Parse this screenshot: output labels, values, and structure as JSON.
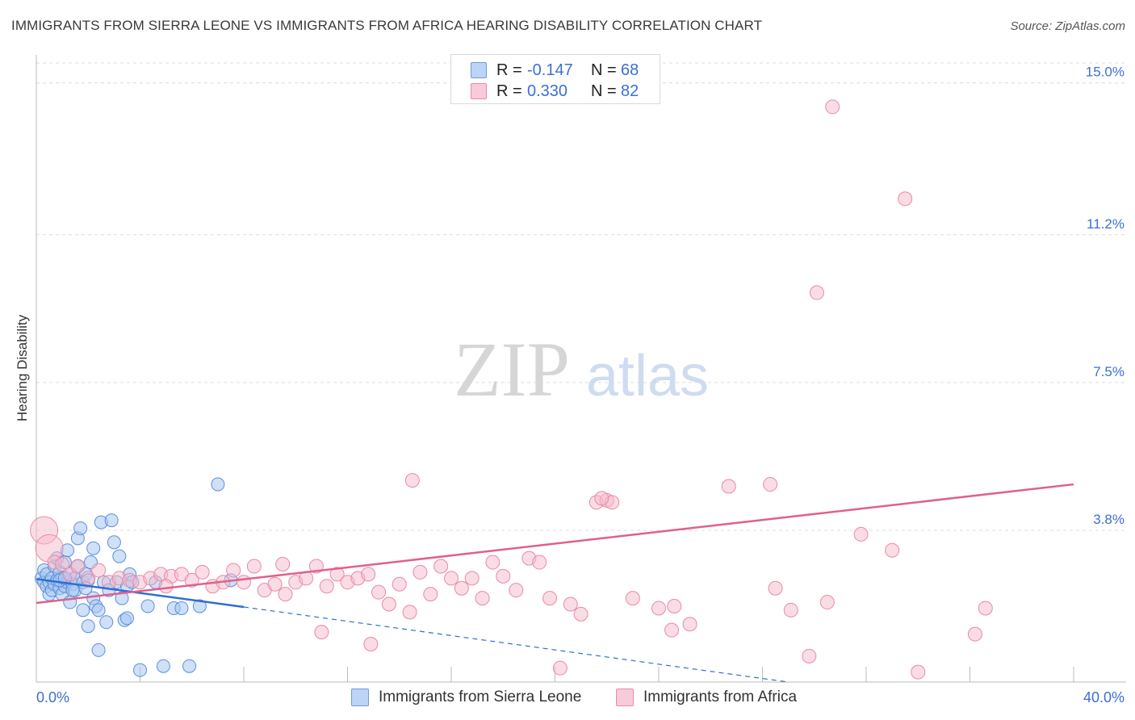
{
  "header": {
    "title": "IMMIGRANTS FROM SIERRA LEONE VS IMMIGRANTS FROM AFRICA HEARING DISABILITY CORRELATION CHART",
    "source": "Source: ZipAtlas.com"
  },
  "watermark": {
    "zip": "ZIP",
    "atlas": "atlas"
  },
  "legend": {
    "series1": {
      "r_label": "R =",
      "r_value": "-0.147",
      "n_label": "N =",
      "n_value": "68"
    },
    "series2": {
      "r_label": "R =",
      "r_value": "0.330",
      "n_label": "N =",
      "n_value": "82"
    }
  },
  "chart_data": {
    "type": "scatter",
    "title": "IMMIGRANTS FROM SIERRA LEONE VS IMMIGRANTS FROM AFRICA HEARING DISABILITY CORRELATION CHART",
    "xlabel": "",
    "ylabel": "Hearing Disability",
    "xlim": [
      0,
      40
    ],
    "ylim": [
      0,
      15.5
    ],
    "x_tick_labels": [
      "0.0%",
      "40.0%"
    ],
    "y_ticks": [
      3.8,
      7.5,
      11.2,
      15.0
    ],
    "y_tick_labels": [
      "3.8%",
      "7.5%",
      "11.2%",
      "15.0%"
    ],
    "grid": true,
    "colors": {
      "series1_fill": "#a8c6f0",
      "series1_stroke": "#5b8fdc",
      "series1_line": "#2f6fd0",
      "series2_fill": "#f6b9cc",
      "series2_stroke": "#e88aa8",
      "series2_line": "#e0608c",
      "tick_label": "#3b6fd6"
    },
    "series": [
      {
        "name": "Immigrants from Sierra Leone",
        "trend": {
          "x": [
            0.0,
            8.0
          ],
          "y": [
            2.58,
            1.88
          ],
          "dashed_to_x": 29.0,
          "dashed_to_y": 0.0
        },
        "points": [
          [
            0.2,
            2.6
          ],
          [
            0.3,
            2.5
          ],
          [
            0.3,
            2.8
          ],
          [
            0.4,
            2.4
          ],
          [
            0.4,
            2.7
          ],
          [
            0.5,
            2.2
          ],
          [
            0.5,
            2.5
          ],
          [
            0.6,
            2.6
          ],
          [
            0.6,
            2.3
          ],
          [
            0.7,
            2.9
          ],
          [
            0.7,
            2.45
          ],
          [
            0.8,
            2.55
          ],
          [
            0.8,
            3.1
          ],
          [
            0.9,
            2.35
          ],
          [
            0.9,
            2.75
          ],
          [
            1.0,
            2.6
          ],
          [
            1.0,
            2.2
          ],
          [
            1.1,
            2.4
          ],
          [
            1.1,
            3.0
          ],
          [
            1.2,
            3.3
          ],
          [
            1.2,
            2.5
          ],
          [
            1.3,
            2.7
          ],
          [
            1.3,
            2.0
          ],
          [
            1.4,
            2.45
          ],
          [
            1.5,
            2.6
          ],
          [
            1.5,
            2.3
          ],
          [
            1.6,
            3.6
          ],
          [
            1.6,
            2.9
          ],
          [
            1.7,
            3.85
          ],
          [
            1.8,
            2.5
          ],
          [
            1.8,
            1.8
          ],
          [
            1.9,
            2.7
          ],
          [
            2.0,
            2.55
          ],
          [
            2.0,
            1.4
          ],
          [
            2.1,
            3.0
          ],
          [
            2.2,
            2.1
          ],
          [
            2.3,
            1.9
          ],
          [
            2.4,
            0.8
          ],
          [
            2.5,
            4.0
          ],
          [
            2.6,
            2.5
          ],
          [
            2.7,
            1.5
          ],
          [
            2.8,
            2.3
          ],
          [
            2.9,
            4.05
          ],
          [
            3.0,
            3.5
          ],
          [
            3.1,
            2.5
          ],
          [
            3.2,
            3.15
          ],
          [
            3.3,
            2.1
          ],
          [
            3.4,
            1.55
          ],
          [
            3.5,
            2.4
          ],
          [
            3.6,
            2.7
          ],
          [
            3.7,
            2.5
          ],
          [
            4.0,
            0.3
          ],
          [
            4.3,
            1.9
          ],
          [
            4.6,
            2.5
          ],
          [
            4.9,
            0.4
          ],
          [
            5.3,
            1.85
          ],
          [
            5.6,
            1.85
          ],
          [
            5.9,
            0.4
          ],
          [
            6.3,
            1.9
          ],
          [
            7.0,
            4.95
          ],
          [
            7.5,
            2.55
          ],
          [
            2.2,
            3.35
          ],
          [
            1.4,
            2.3
          ],
          [
            0.9,
            2.55
          ],
          [
            2.4,
            1.8
          ],
          [
            1.9,
            2.35
          ],
          [
            3.5,
            1.6
          ],
          [
            1.1,
            2.6
          ]
        ]
      },
      {
        "name": "Immigrants from Africa",
        "trend": {
          "x": [
            0.0,
            40.0
          ],
          "y": [
            1.98,
            4.95
          ]
        },
        "points": [
          [
            0.3,
            3.8
          ],
          [
            0.5,
            3.35
          ],
          [
            0.7,
            3.0
          ],
          [
            1.0,
            2.95
          ],
          [
            1.3,
            2.7
          ],
          [
            1.6,
            2.9
          ],
          [
            2.0,
            2.6
          ],
          [
            2.4,
            2.8
          ],
          [
            2.8,
            2.5
          ],
          [
            3.2,
            2.6
          ],
          [
            3.6,
            2.55
          ],
          [
            4.0,
            2.5
          ],
          [
            4.4,
            2.6
          ],
          [
            4.8,
            2.7
          ],
          [
            5.2,
            2.65
          ],
          [
            5.6,
            2.7
          ],
          [
            6.0,
            2.55
          ],
          [
            6.4,
            2.75
          ],
          [
            6.8,
            2.4
          ],
          [
            7.2,
            2.5
          ],
          [
            7.6,
            2.8
          ],
          [
            8.0,
            2.5
          ],
          [
            8.4,
            2.9
          ],
          [
            8.8,
            2.3
          ],
          [
            9.2,
            2.45
          ],
          [
            9.6,
            2.2
          ],
          [
            10.0,
            2.5
          ],
          [
            10.4,
            2.6
          ],
          [
            10.8,
            2.9
          ],
          [
            11.2,
            2.4
          ],
          [
            11.6,
            2.7
          ],
          [
            12.0,
            2.5
          ],
          [
            12.4,
            2.6
          ],
          [
            12.8,
            2.7
          ],
          [
            13.2,
            2.25
          ],
          [
            13.6,
            1.95
          ],
          [
            14.0,
            2.45
          ],
          [
            14.4,
            1.75
          ],
          [
            14.8,
            2.75
          ],
          [
            15.2,
            2.2
          ],
          [
            15.6,
            2.9
          ],
          [
            16.0,
            2.6
          ],
          [
            16.4,
            2.35
          ],
          [
            16.8,
            2.6
          ],
          [
            17.2,
            2.1
          ],
          [
            17.6,
            3.0
          ],
          [
            18.0,
            2.65
          ],
          [
            18.5,
            2.3
          ],
          [
            19.0,
            3.1
          ],
          [
            19.4,
            3.0
          ],
          [
            19.8,
            2.1
          ],
          [
            20.2,
            0.35
          ],
          [
            20.6,
            1.95
          ],
          [
            21.0,
            1.7
          ],
          [
            21.6,
            4.5
          ],
          [
            22.0,
            4.55
          ],
          [
            22.2,
            4.5
          ],
          [
            23.0,
            2.1
          ],
          [
            24.0,
            1.85
          ],
          [
            24.5,
            1.3
          ],
          [
            25.2,
            1.45
          ],
          [
            14.5,
            5.05
          ],
          [
            21.8,
            4.6
          ],
          [
            26.7,
            4.9
          ],
          [
            28.3,
            4.95
          ],
          [
            28.5,
            2.35
          ],
          [
            29.1,
            1.8
          ],
          [
            29.8,
            0.65
          ],
          [
            30.5,
            2.0
          ],
          [
            31.8,
            3.7
          ],
          [
            33.0,
            3.3
          ],
          [
            24.6,
            1.9
          ],
          [
            12.9,
            0.95
          ],
          [
            36.6,
            1.85
          ],
          [
            11.0,
            1.25
          ],
          [
            33.5,
            12.1
          ],
          [
            30.1,
            9.75
          ],
          [
            30.7,
            14.4
          ],
          [
            36.2,
            1.2
          ],
          [
            34.0,
            0.25
          ],
          [
            9.5,
            2.95
          ],
          [
            5.0,
            2.4
          ]
        ]
      }
    ]
  },
  "bottom_legend": {
    "series1_label": "Immigrants from Sierra Leone",
    "series2_label": "Immigrants from Africa"
  }
}
